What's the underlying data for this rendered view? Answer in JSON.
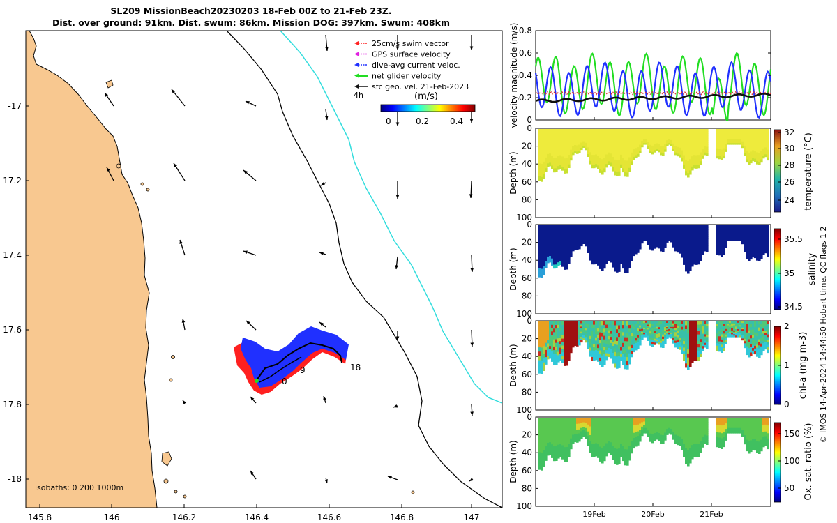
{
  "title_line1": "SL209 MissionBeach20230203 18-Feb 00Z to 21-Feb 23Z.",
  "title_line2": "Dist. over ground: 91km. Dist. swum: 86km. Mission DOG: 397km. Swum: 408km",
  "map": {
    "x_ticks": [
      "145.8",
      "146",
      "146.2",
      "146.4",
      "146.6",
      "146.8",
      "147"
    ],
    "y_ticks": [
      "-17",
      "17.2",
      "17.4",
      "17.6",
      "17.8",
      "-18"
    ],
    "xlim": [
      145.75,
      147.08
    ],
    "ylim": [
      -18.1,
      -16.78
    ],
    "legend": [
      {
        "label": "25cm/s swim vector",
        "color": "#ff2222"
      },
      {
        "label": "GPS surface velocity",
        "color": "#e020e0"
      },
      {
        "label": "dive-avg current veloc.",
        "color": "#2030ff"
      },
      {
        "label": "net glider velocity",
        "color": "#22dd22"
      },
      {
        "label": "sfc geo. vel. 21-Feb-2023",
        "color": "#111111"
      }
    ],
    "legend_note": "4h",
    "colorbar_label": "(m/s)",
    "colorbar_ticks": [
      "0",
      "0.2",
      "0.4"
    ],
    "isobaths_label": "isobaths: 0   200  1000m",
    "track_labels": [
      "0",
      "9",
      "18"
    ]
  },
  "chart_data": [
    {
      "type": "line",
      "title": "",
      "ylabel": "velocity magnitude (m/s)",
      "ylim": [
        0,
        0.8
      ],
      "y_ticks": [
        "0",
        "0.2",
        "0.4",
        "0.6",
        "0.8"
      ],
      "series": [
        {
          "name": "net glider velocity",
          "color": "#22dd22"
        },
        {
          "name": "dive-avg current veloc.",
          "color": "#2030ff"
        },
        {
          "name": "swim speed",
          "color": "#e03030"
        },
        {
          "name": "surface geostrophic",
          "color": "#111111"
        }
      ]
    },
    {
      "type": "heatmap",
      "ylabel": "Depth (m)",
      "colorbar_label": "temperature (°C)",
      "depth_ticks": [
        "0",
        "20",
        "40",
        "60",
        "80",
        "100"
      ],
      "colorbar_ticks": [
        "32",
        "30",
        "28",
        "26",
        "24"
      ],
      "clim": [
        22.5,
        32
      ]
    },
    {
      "type": "heatmap",
      "ylabel": "Depth (m)",
      "colorbar_label": "salinity",
      "depth_ticks": [
        "0",
        "20",
        "40",
        "60",
        "80",
        "100"
      ],
      "colorbar_ticks": [
        "35.5",
        "35",
        "34.5"
      ],
      "clim": [
        34.5,
        35.7
      ]
    },
    {
      "type": "heatmap",
      "ylabel": "Depth (m)",
      "colorbar_label": "chl-a (mg m-3)",
      "depth_ticks": [
        "0",
        "20",
        "40",
        "60",
        "80",
        "100"
      ],
      "colorbar_ticks": [
        "2",
        "1",
        "0"
      ],
      "clim": [
        0,
        2
      ]
    },
    {
      "type": "heatmap",
      "ylabel": "Depth (m)",
      "colorbar_label": "Ox. sat. ratio (%)",
      "depth_ticks": [
        "0",
        "20",
        "40",
        "60",
        "80",
        "100"
      ],
      "colorbar_ticks": [
        "150",
        "100",
        "50"
      ],
      "clim": [
        25,
        175
      ]
    }
  ],
  "time_axis": [
    "19Feb",
    "20Feb",
    "21Feb"
  ],
  "side_note": "© IMOS 14-Apr-2024 14:44:50 Hobart time. QC flags 1  2"
}
